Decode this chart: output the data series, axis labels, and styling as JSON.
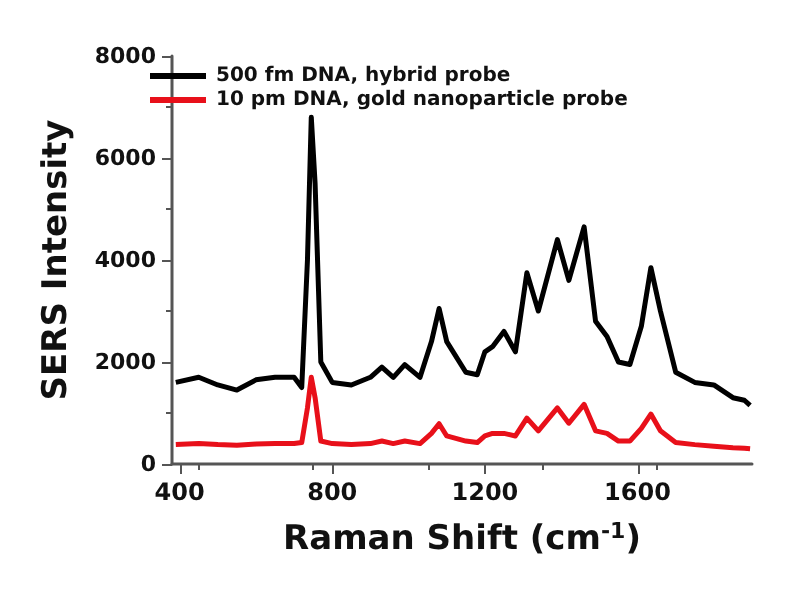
{
  "chart_data": {
    "type": "line",
    "xlabel": "Raman Shift (cm$^{-1}$)",
    "ylabel": "SERS Intensity",
    "xlim": [
      380,
      1900
    ],
    "xticks": [
      400,
      800,
      1200,
      1600
    ],
    "ylim": [
      0,
      8000
    ],
    "yticks": [
      0,
      2000,
      4000,
      6000,
      8000
    ],
    "grid": false,
    "legend": "top left",
    "marker": "none",
    "line_style": "solid",
    "series": [
      {
        "name": "500 fm DNA, hybrid probe",
        "color": "#000000",
        "x": [
          390,
          450,
          500,
          550,
          600,
          650,
          700,
          720,
          735,
          745,
          755,
          770,
          800,
          850,
          900,
          930,
          960,
          990,
          1030,
          1060,
          1080,
          1100,
          1150,
          1180,
          1200,
          1220,
          1250,
          1280,
          1310,
          1340,
          1390,
          1420,
          1460,
          1490,
          1520,
          1550,
          1580,
          1610,
          1635,
          1660,
          1700,
          1750,
          1800,
          1850,
          1880,
          1895
        ],
        "values": [
          1600,
          1700,
          1550,
          1450,
          1650,
          1700,
          1700,
          1500,
          4000,
          6800,
          5500,
          2000,
          1600,
          1550,
          1700,
          1900,
          1700,
          1950,
          1700,
          2400,
          3050,
          2400,
          1800,
          1750,
          2200,
          2300,
          2600,
          2200,
          3750,
          3000,
          4400,
          3600,
          4650,
          2800,
          2500,
          2000,
          1950,
          2700,
          3850,
          3000,
          1800,
          1600,
          1550,
          1300,
          1250,
          1150
        ]
      },
      {
        "name": "10 pm DNA, gold nanoparticle probe",
        "color": "#e8101a",
        "x": [
          390,
          450,
          500,
          550,
          600,
          650,
          700,
          720,
          735,
          745,
          755,
          770,
          800,
          850,
          900,
          930,
          960,
          990,
          1030,
          1060,
          1080,
          1100,
          1150,
          1180,
          1200,
          1220,
          1250,
          1280,
          1310,
          1340,
          1390,
          1420,
          1460,
          1490,
          1520,
          1550,
          1580,
          1610,
          1635,
          1660,
          1700,
          1750,
          1800,
          1850,
          1880,
          1895
        ],
        "values": [
          380,
          400,
          380,
          370,
          390,
          400,
          400,
          420,
          1100,
          1700,
          1300,
          450,
          400,
          380,
          400,
          450,
          400,
          450,
          400,
          600,
          790,
          550,
          450,
          420,
          550,
          600,
          600,
          550,
          900,
          650,
          1100,
          800,
          1170,
          650,
          600,
          450,
          450,
          700,
          980,
          650,
          420,
          380,
          350,
          320,
          310,
          300
        ]
      }
    ]
  }
}
